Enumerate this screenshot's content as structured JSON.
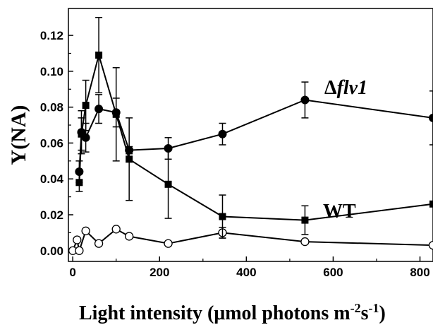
{
  "chart_data": {
    "type": "line",
    "xlabel": "Light intensity (μmol photons m⁻²s⁻¹)",
    "ylabel": "Y(NA)",
    "xlim": [
      -10,
      830
    ],
    "ylim": [
      -0.006,
      0.135
    ],
    "x_ticks": [
      0,
      200,
      400,
      600,
      800
    ],
    "y_ticks": [
      0.0,
      0.02,
      0.04,
      0.06,
      0.08,
      0.1,
      0.12
    ],
    "x_tick_labels": [
      "0",
      "200",
      "400",
      "600",
      "800"
    ],
    "y_tick_labels": [
      "0.00",
      "0.02",
      "0.04",
      "0.06",
      "0.08",
      "0.10",
      "0.12"
    ],
    "grid": false,
    "series": [
      {
        "name": "Δflv1",
        "marker": "filled-circle",
        "points": [
          {
            "x": 15,
            "y": 0.044,
            "err": 0.006
          },
          {
            "x": 20,
            "y": 0.066,
            "err": 0.012
          },
          {
            "x": 30,
            "y": 0.063,
            "err": 0.008
          },
          {
            "x": 60,
            "y": 0.079,
            "err": 0.008
          },
          {
            "x": 100,
            "y": 0.077,
            "err": 0.008
          },
          {
            "x": 130,
            "y": 0.056,
            "err": 0.002
          },
          {
            "x": 220,
            "y": 0.057,
            "err": 0.006
          },
          {
            "x": 345,
            "y": 0.065,
            "err": 0.006
          },
          {
            "x": 535,
            "y": 0.084,
            "err": 0.01
          },
          {
            "x": 830,
            "y": 0.074,
            "err": 0.015
          }
        ]
      },
      {
        "name": "WT",
        "marker": "filled-square",
        "points": [
          {
            "x": 15,
            "y": 0.038,
            "err": 0.005
          },
          {
            "x": 20,
            "y": 0.065,
            "err": 0.009
          },
          {
            "x": 30,
            "y": 0.081,
            "err": 0.014
          },
          {
            "x": 60,
            "y": 0.109,
            "err": 0.021
          },
          {
            "x": 100,
            "y": 0.076,
            "err": 0.026
          },
          {
            "x": 130,
            "y": 0.051,
            "err": 0.023
          },
          {
            "x": 220,
            "y": 0.037,
            "err": 0.019
          },
          {
            "x": 345,
            "y": 0.019,
            "err": 0.012
          },
          {
            "x": 535,
            "y": 0.017,
            "err": 0.008
          },
          {
            "x": 830,
            "y": 0.026,
            "err": 0
          }
        ]
      },
      {
        "marker": "open-circle",
        "points": [
          {
            "x": 0,
            "y": 0.0,
            "err": 0
          },
          {
            "x": 10,
            "y": 0.006,
            "err": 0
          },
          {
            "x": 15,
            "y": 0.0,
            "err": 0
          },
          {
            "x": 30,
            "y": 0.011,
            "err": 0
          },
          {
            "x": 60,
            "y": 0.004,
            "err": 0
          },
          {
            "x": 100,
            "y": 0.012,
            "err": 0
          },
          {
            "x": 130,
            "y": 0.008,
            "err": 0
          },
          {
            "x": 220,
            "y": 0.004,
            "err": 0
          },
          {
            "x": 345,
            "y": 0.01,
            "err": 0.003
          },
          {
            "x": 535,
            "y": 0.005,
            "err": 0
          },
          {
            "x": 830,
            "y": 0.003,
            "err": 0
          }
        ]
      }
    ],
    "labels": {
      "flv1": {
        "delta": "Δ",
        "italic": "flv1"
      },
      "wt": "WT"
    }
  }
}
